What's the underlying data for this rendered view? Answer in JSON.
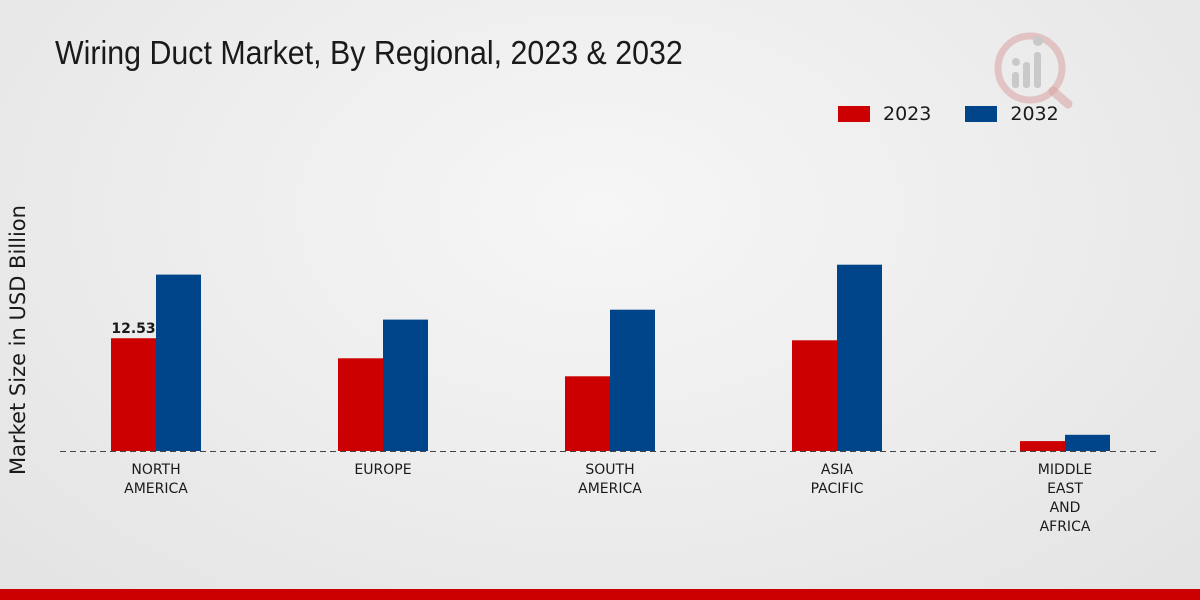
{
  "colors": {
    "series_2023": "#cc0000",
    "series_2032": "#004589",
    "bottom_bar": "#cc0000",
    "baseline": "#444444"
  },
  "logo": {
    "icon": "analytics-magnifier-logo-icon"
  },
  "chart_data": {
    "type": "bar",
    "title": "Wiring Duct Market, By Regional, 2023 & 2032",
    "xlabel": "",
    "ylabel": "Market Size in USD Billion",
    "ylim": [
      0,
      36
    ],
    "grid": false,
    "legend_position": "top-right",
    "categories": [
      "NORTH AMERICA",
      "EUROPE",
      "SOUTH AMERICA",
      "ASIA PACIFIC",
      "MIDDLE EAST AND AFRICA"
    ],
    "category_labels": [
      [
        "NORTH",
        "AMERICA"
      ],
      [
        "EUROPE"
      ],
      [
        "SOUTH",
        "AMERICA"
      ],
      [
        "ASIA",
        "PACIFIC"
      ],
      [
        "MIDDLE",
        "EAST",
        "AND",
        "AFRICA"
      ]
    ],
    "series": [
      {
        "name": "2023",
        "values": [
          12.53,
          10.3,
          8.3,
          12.3,
          1.1
        ]
      },
      {
        "name": "2032",
        "values": [
          19.6,
          14.6,
          15.7,
          20.7,
          1.8
        ]
      }
    ],
    "annotations": [
      {
        "series": 0,
        "category": 0,
        "text": "12.53"
      }
    ]
  }
}
